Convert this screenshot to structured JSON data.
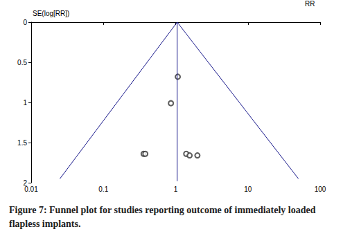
{
  "chart_data": {
    "type": "scatter",
    "title": "Figure 7: Funnel plot for studies reporting outcome of immediately loaded flapless implants.",
    "x_label": "RR",
    "y_label": "SE(log[RR])",
    "x": [
      1.07,
      0.86,
      0.36,
      0.38,
      1.4,
      1.56,
      2.0
    ],
    "y": [
      0.68,
      1.01,
      1.64,
      1.64,
      1.64,
      1.66,
      1.66
    ],
    "xlim": [
      0.01,
      100
    ],
    "ylim": [
      0,
      2
    ],
    "xticks": [
      0.01,
      0.1,
      1,
      10,
      100
    ],
    "yticks": [
      0,
      0.5,
      1,
      1.5,
      2
    ],
    "log": "x",
    "grid": false,
    "marker": "open_circle",
    "color": "#333333",
    "pooled_line": {
      "x": [
        1.05,
        1.05
      ],
      "y": [
        0,
        1.98
      ]
    },
    "funnel_lines": [
      {
        "x": [
          1.05,
          0.025
        ],
        "y": [
          0,
          1.95
        ]
      },
      {
        "x": [
          1.05,
          50
        ],
        "y": [
          0,
          1.95
        ]
      }
    ]
  }
}
